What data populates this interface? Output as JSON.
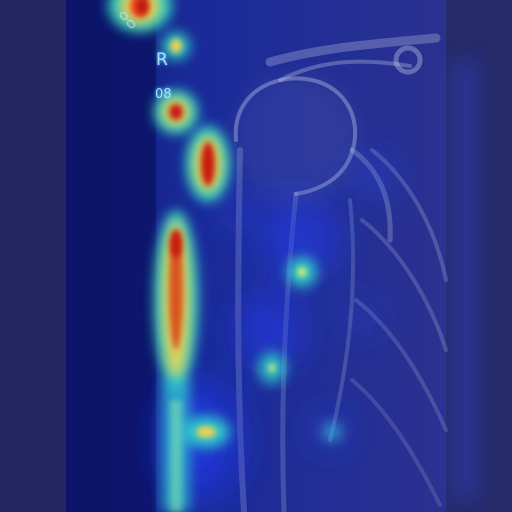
{
  "image": {
    "kind": "shoulder radiograph with heatmap overlay",
    "side_marker": "R",
    "code_marker": "08"
  },
  "colors": {
    "background": "#232660",
    "dark_band": "#0c1366",
    "bone": "#d8dcf0",
    "heat_low": "#1a3cff",
    "heat_mid": "#33e0c8",
    "heat_high": "#ffd24a",
    "heat_peak": "#c81a10"
  },
  "overlay": {
    "colormap": "jet"
  }
}
